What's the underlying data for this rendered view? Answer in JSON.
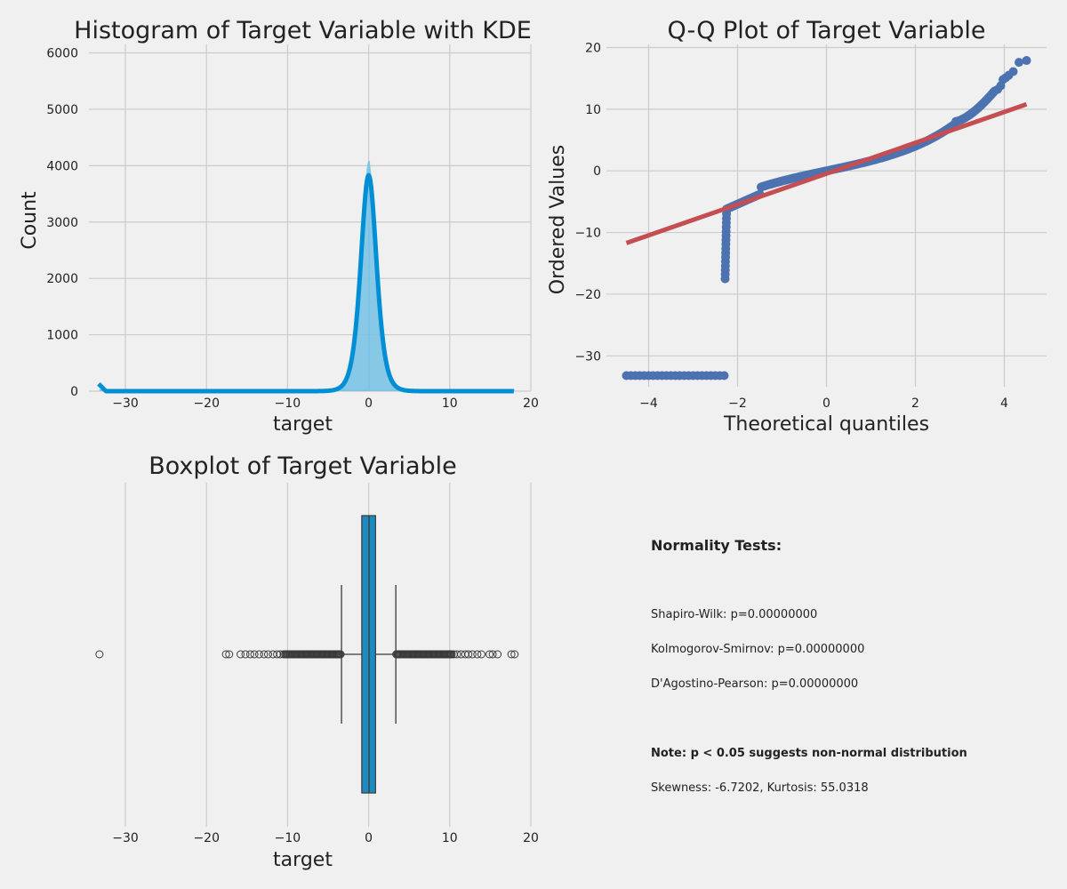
{
  "chart_data": [
    {
      "type": "histogram",
      "title": "Histogram of Target Variable with KDE",
      "xlabel": "target",
      "ylabel": "Count",
      "xlim": [
        -34.5,
        20
      ],
      "ylim": [
        0,
        6150
      ],
      "xticks": [
        -30,
        -20,
        -10,
        0,
        10,
        20
      ],
      "yticks": [
        0,
        1000,
        2000,
        3000,
        4000,
        5000,
        6000
      ],
      "grid": true,
      "bin_peak_count": 4080,
      "kde_peak_count": 3830,
      "kde_scale": 1.3,
      "outlier_spike": {
        "x": -33.2,
        "count": 130
      },
      "x_range": [
        -33.2,
        18
      ],
      "color": "#008fd5",
      "fill_color": "#7cc3e6"
    },
    {
      "type": "scatter",
      "title": "Q-Q Plot of Target Variable",
      "xlabel": "Theoretical quantiles",
      "ylabel": "Ordered Values",
      "xlim": [
        -4.95,
        4.95
      ],
      "ylim": [
        -35,
        20.5
      ],
      "xticks": [
        -4,
        -2,
        0,
        2,
        4
      ],
      "yticks": [
        -30,
        -20,
        -10,
        0,
        10,
        20
      ],
      "grid": true,
      "fit_line": {
        "x": [
          -4.5,
          4.5
        ],
        "y": [
          -11.7,
          10.8
        ]
      },
      "outlier_level": -33.2,
      "outlier_x_range": [
        -4.5,
        -2.28
      ],
      "tail_points": [
        {
          "x": 3.85,
          "y": 13.2
        },
        {
          "x": 3.92,
          "y": 13.8
        },
        {
          "x": 3.97,
          "y": 14.8
        },
        {
          "x": 4.03,
          "y": 15.1
        },
        {
          "x": 4.1,
          "y": 15.5
        },
        {
          "x": 4.2,
          "y": 16.1
        },
        {
          "x": 4.33,
          "y": 17.6
        },
        {
          "x": 4.5,
          "y": 17.9
        }
      ],
      "point_color": "#4c72b0",
      "line_color": "#c44e52"
    },
    {
      "type": "boxplot",
      "title": "Boxplot of Target Variable",
      "xlabel": "target",
      "xlim": [
        -34.5,
        20
      ],
      "xticks": [
        -30,
        -20,
        -10,
        0,
        10,
        20
      ],
      "grid": true,
      "q1": -0.85,
      "median": 0.05,
      "q3": 0.85,
      "whisker_low": -3.35,
      "whisker_high": 3.35,
      "outliers_low": [
        -33.2,
        -17.6,
        -17.2,
        -15.8,
        -15.2,
        -14.6,
        -14.1,
        -13.5,
        -12.9,
        -12.4,
        -11.8,
        -11.3,
        -10.9,
        -10.5
      ],
      "outliers_high": [
        10.5,
        10.9,
        11.4,
        11.9,
        12.3,
        12.8,
        13.4,
        13.9,
        14.9,
        15.3,
        15.9,
        17.6,
        18.0
      ],
      "dense_outliers_low": [
        -10.3,
        -3.4
      ],
      "dense_outliers_high": [
        3.4,
        10.3
      ],
      "box_color": "#1f8ac0"
    }
  ],
  "normality_tests": {
    "heading": "Normality Tests:",
    "shapiro": "Shapiro-Wilk: p=0.00000000",
    "ks": "Kolmogorov-Smirnov: p=0.00000000",
    "dagostino": "D'Agostino-Pearson: p=0.00000000",
    "note": "Note: p < 0.05 suggests non-normal distribution",
    "stats": "Skewness: -6.7202, Kurtosis: 55.0318"
  }
}
